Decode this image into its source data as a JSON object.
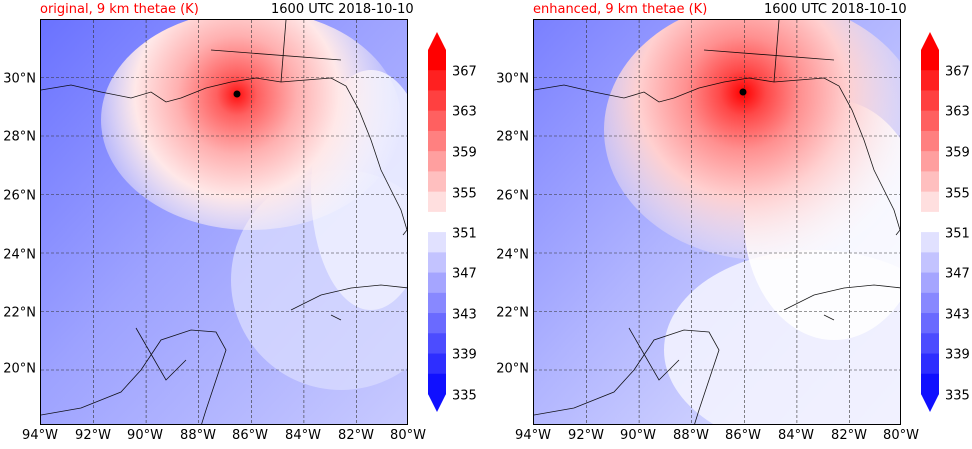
{
  "colors": {
    "title_accent": "#ff0000",
    "cold": "#1010ff",
    "neutral": "#ffffff",
    "warm": "#ff0000"
  },
  "panels": [
    {
      "title_left": "original, 9 km thetae (K)",
      "title_right": "1600 UTC 2018-10-10",
      "storm_center": {
        "lon": -86.6,
        "lat": 29.5
      }
    },
    {
      "title_left": "enhanced, 9 km thetae (K)",
      "title_right": "1600 UTC 2018-10-10",
      "storm_center": {
        "lon": -86.1,
        "lat": 29.6
      }
    }
  ],
  "axes": {
    "lon_labels": [
      "94°W",
      "92°W",
      "90°W",
      "88°W",
      "86°W",
      "84°W",
      "82°W",
      "80°W"
    ],
    "lat_labels": [
      "30°N",
      "28°N",
      "26°N",
      "24°N",
      "22°N",
      "20°N"
    ],
    "lon_range": [
      -94,
      -80
    ],
    "lat_range": [
      18.2,
      32.0
    ]
  },
  "colorbar": {
    "tick_labels": [
      "367",
      "363",
      "359",
      "355",
      "351",
      "347",
      "343",
      "339",
      "335"
    ],
    "range": [
      335,
      369
    ],
    "extend": "both"
  }
}
